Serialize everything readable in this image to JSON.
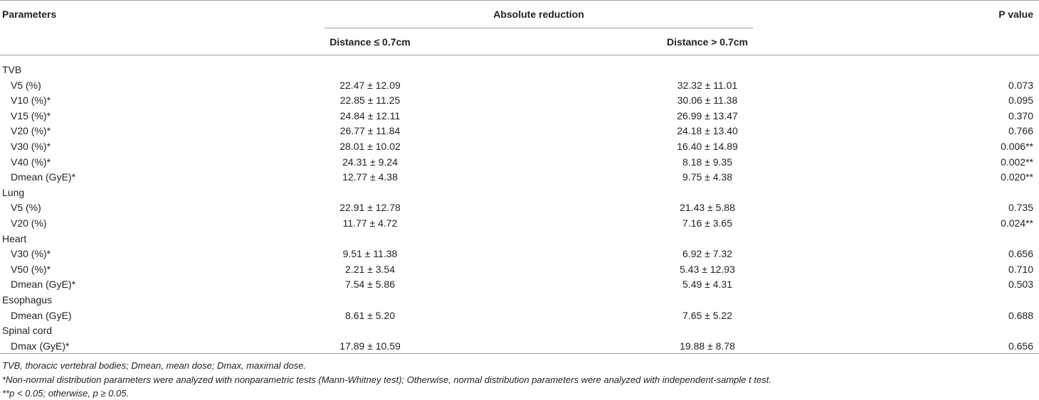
{
  "table": {
    "headers": {
      "parameters": "Parameters",
      "absolute_reduction": "Absolute reduction",
      "p_value": "P value",
      "col1": "Distance ≤ 0.7cm",
      "col2": "Distance > 0.7cm"
    },
    "rows": [
      {
        "type": "group",
        "label": "TVB"
      },
      {
        "type": "row",
        "label": "V5 (%)",
        "d1": "22.47 ± 12.09",
        "d2": "32.32 ± 11.01",
        "p": "0.073"
      },
      {
        "type": "row",
        "label": "V10 (%)*",
        "d1": "22.85 ± 11.25",
        "d2": "30.06 ± 11.38",
        "p": "0.095"
      },
      {
        "type": "row",
        "label": "V15 (%)*",
        "d1": "24.84 ± 12.11",
        "d2": "26.99 ± 13.47",
        "p": "0.370"
      },
      {
        "type": "row",
        "label": "V20 (%)*",
        "d1": "26.77 ± 11.84",
        "d2": "24.18 ± 13.40",
        "p": "0.766"
      },
      {
        "type": "row",
        "label": "V30 (%)*",
        "d1": "28.01 ± 10.02",
        "d2": "16.40 ± 14.89",
        "p": "0.006**"
      },
      {
        "type": "row",
        "label": "V40 (%)*",
        "d1": "24.31 ± 9.24",
        "d2": "8.18 ± 9.35",
        "p": "0.002**"
      },
      {
        "type": "row",
        "label": "Dmean (GyE)*",
        "d1": "12.77 ± 4.38",
        "d2": "9.75 ± 4.38",
        "p": "0.020**"
      },
      {
        "type": "group",
        "label": "Lung"
      },
      {
        "type": "row",
        "label": "V5 (%)",
        "d1": "22.91 ± 12.78",
        "d2": "21.43 ± 5.88",
        "p": "0.735"
      },
      {
        "type": "row",
        "label": "V20 (%)",
        "d1": "11.77 ± 4.72",
        "d2": "7.16 ± 3.65",
        "p": "0.024**"
      },
      {
        "type": "group",
        "label": "Heart"
      },
      {
        "type": "row",
        "label": "V30 (%)*",
        "d1": "9.51 ± 11.38",
        "d2": "6.92 ± 7.32",
        "p": "0.656"
      },
      {
        "type": "row",
        "label": "V50 (%)*",
        "d1": "2.21 ± 3.54",
        "d2": "5.43 ± 12.93",
        "p": "0.710"
      },
      {
        "type": "row",
        "label": "Dmean (GyE)*",
        "d1": "7.54 ± 5.86",
        "d2": "5.49 ± 4.31",
        "p": "0.503"
      },
      {
        "type": "group",
        "label": "Esophagus"
      },
      {
        "type": "row",
        "label": "Dmean (GyE)",
        "d1": "8.61 ± 5.20",
        "d2": "7.65 ± 5.22",
        "p": "0.688"
      },
      {
        "type": "group",
        "label": "Spinal cord"
      },
      {
        "type": "row",
        "label": "Dmax (GyE)*",
        "d1": "17.89 ± 10.59",
        "d2": "19.88 ± 8.78",
        "p": "0.656"
      }
    ]
  },
  "footnotes": [
    "TVB, thoracic vertebral bodies; Dmean, mean dose; Dmax, maximal dose.",
    "*Non-normal distribution parameters were analyzed with nonparametric tests (Mann-Whitney test); Otherwise, normal distribution parameters were analyzed with independent-sample t test.",
    "**p < 0.05; otherwise, p ≥ 0.05."
  ]
}
